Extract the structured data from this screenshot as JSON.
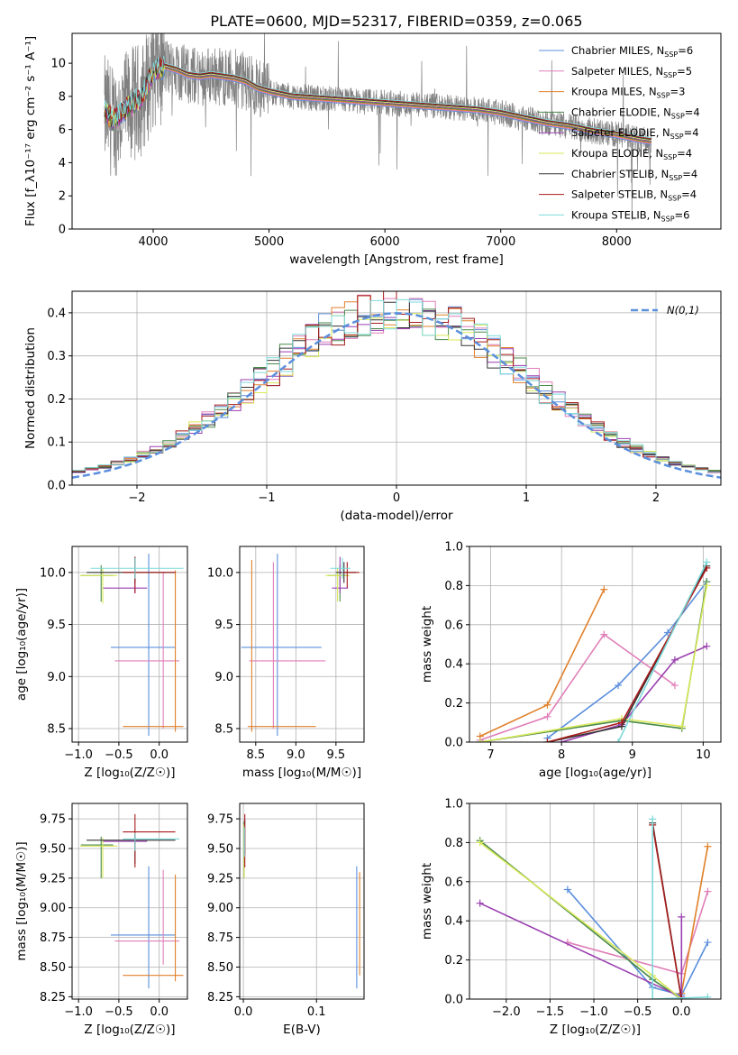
{
  "figure_title": "PLATE=0600, MJD=52317, FIBERID=0359, z=0.065",
  "colors": {
    "Chabrier MILES": "#5b8fdc",
    "Salpeter MILES": "#e07fb8",
    "Kroupa MILES": "#e0802a",
    "Chabrier ELODIE": "#4a8a4a",
    "Salpeter ELODIE": "#9a3fb0",
    "Kroupa ELODIE": "#d9e85a",
    "Chabrier STELIB": "#333333",
    "Salpeter STELIB": "#a81c1c",
    "Kroupa STELIB": "#7ed9d9",
    "data": "#808080",
    "normal": "#5b8fdc"
  },
  "chart_data": [
    {
      "id": "spectrum",
      "type": "line",
      "title": "PLATE=0600, MJD=52317, FIBERID=0359, z=0.065",
      "xlabel": "wavelength [Angstrom, rest frame]",
      "ylabel": "Flux [f_λ10⁻¹⁷ erg cm⁻² s⁻¹ A⁻¹]",
      "xlim": [
        3300,
        8900
      ],
      "ylim": [
        0,
        11.8
      ],
      "xticks": [
        4000,
        5000,
        6000,
        7000,
        8000
      ],
      "yticks": [
        0,
        2,
        4,
        6,
        8,
        10
      ],
      "grid": false,
      "legend_position": "upper-right",
      "legend": [
        {
          "name": "Chabrier MILES",
          "nssp": "6"
        },
        {
          "name": "Salpeter MILES",
          "nssp": "5"
        },
        {
          "name": "Kroupa MILES",
          "nssp": "3"
        },
        {
          "name": "Chabrier ELODIE",
          "nssp": "4"
        },
        {
          "name": "Salpeter ELODIE",
          "nssp": "4"
        },
        {
          "name": "Kroupa ELODIE",
          "nssp": "4"
        },
        {
          "name": "Chabrier STELIB",
          "nssp": "4"
        },
        {
          "name": "Salpeter STELIB",
          "nssp": "4"
        },
        {
          "name": "Kroupa STELIB",
          "nssp": "6"
        }
      ],
      "model_continuum": {
        "x": [
          3600,
          3650,
          3700,
          3800,
          3900,
          4000,
          4100,
          4200,
          4300,
          4400,
          4500,
          4600,
          4700,
          4800,
          4900,
          5000,
          5200,
          5400,
          5600,
          5800,
          6000,
          6200,
          6400,
          6600,
          6800,
          7000,
          7200,
          7400,
          7600,
          7800,
          8000,
          8200,
          8400
        ],
        "y": [
          7.0,
          6.5,
          6.8,
          7.5,
          7.8,
          9.5,
          9.8,
          9.6,
          9.3,
          9.2,
          9.3,
          9.2,
          9.1,
          8.9,
          8.5,
          8.3,
          8.0,
          7.9,
          7.8,
          7.7,
          7.6,
          7.5,
          7.4,
          7.3,
          7.2,
          7.0,
          6.7,
          6.4,
          6.2,
          5.9,
          5.7,
          5.4,
          5.2
        ]
      }
    },
    {
      "id": "residuals",
      "type": "histogram",
      "xlabel": "(data-model)/error",
      "ylabel": "Normed distribution",
      "xlim": [
        -2.5,
        2.5
      ],
      "ylim": [
        0,
        0.45
      ],
      "xticks": [
        -2,
        -1,
        0,
        1,
        2
      ],
      "yticks": [
        0.0,
        0.1,
        0.2,
        0.3,
        0.4
      ],
      "grid": true,
      "legend": "N(0,1)",
      "legend_position": "upper-right",
      "bin_width": 0.1
    },
    {
      "id": "age_vs_Z",
      "type": "errorbar",
      "xlabel": "Z [log₁₀(Z/Z☉)]",
      "ylabel": "age  [log₁₀(age/yr)]",
      "xlim": [
        -1.08,
        0.35
      ],
      "ylim": [
        8.37,
        10.25
      ],
      "xticks": [
        -1.0,
        -0.5,
        0.0
      ],
      "yticks": [
        8.5,
        9.0,
        9.5,
        10.0
      ],
      "grid": true,
      "points": [
        {
          "model": "Chabrier MILES",
          "x": -0.13,
          "y": 9.28,
          "xerr": [
            0.47,
            0.33
          ],
          "yerr": [
            0.85,
            0.9
          ]
        },
        {
          "model": "Salpeter MILES",
          "x": 0.05,
          "y": 9.15,
          "xerr": [
            0.6,
            0.2
          ],
          "yerr": [
            0.65,
            0.85
          ]
        },
        {
          "model": "Kroupa MILES",
          "x": 0.2,
          "y": 8.52,
          "xerr": [
            0.65,
            0.1
          ],
          "yerr": [
            0.05,
            1.5
          ]
        },
        {
          "model": "Chabrier ELODIE",
          "x": -0.72,
          "y": 9.97,
          "xerr": [
            0.25,
            0.15
          ],
          "yerr": [
            0.25,
            0.1
          ]
        },
        {
          "model": "Salpeter ELODIE",
          "x": -0.3,
          "y": 9.85,
          "xerr": [
            0.4,
            0.15
          ],
          "yerr": [
            0.05,
            0.3
          ]
        },
        {
          "model": "Kroupa ELODIE",
          "x": -0.7,
          "y": 9.97,
          "xerr": [
            0.28,
            0.18
          ],
          "yerr": [
            0.27,
            0.07
          ]
        },
        {
          "model": "Chabrier STELIB",
          "x": -0.3,
          "y": 10.0,
          "xerr": [
            0.6,
            0.5
          ],
          "yerr": [
            0.1,
            0.15
          ]
        },
        {
          "model": "Salpeter STELIB",
          "x": -0.3,
          "y": 10.0,
          "xerr": [
            0.15,
            0.5
          ],
          "yerr": [
            0.2,
            0.15
          ]
        },
        {
          "model": "Kroupa STELIB",
          "x": -0.3,
          "y": 10.04,
          "xerr": [
            0.55,
            0.6
          ],
          "yerr": [
            0.1,
            0.1
          ]
        }
      ]
    },
    {
      "id": "age_vs_mass",
      "type": "errorbar",
      "xlabel": "mass [log₁₀(M/M☉)]",
      "xlim": [
        8.3,
        9.85
      ],
      "ylim": [
        8.37,
        10.25
      ],
      "xticks": [
        8.5,
        9.0,
        9.5
      ],
      "yticks": [
        8.5,
        9.0,
        9.5,
        10.0
      ],
      "grid": true,
      "points": [
        {
          "model": "Chabrier MILES",
          "x": 8.77,
          "y": 9.28,
          "xerr": [
            0.45,
            0.55
          ],
          "yerr": [
            0.85,
            0.9
          ]
        },
        {
          "model": "Salpeter MILES",
          "x": 8.72,
          "y": 9.15,
          "xerr": [
            0.3,
            0.65
          ],
          "yerr": [
            0.65,
            0.95
          ]
        },
        {
          "model": "Kroupa MILES",
          "x": 8.45,
          "y": 8.52,
          "xerr": [
            0.05,
            0.8
          ],
          "yerr": [
            0.05,
            1.6
          ]
        },
        {
          "model": "Chabrier ELODIE",
          "x": 9.55,
          "y": 9.97,
          "xerr": [
            0.15,
            0.1
          ],
          "yerr": [
            0.25,
            0.1
          ]
        },
        {
          "model": "Salpeter ELODIE",
          "x": 9.55,
          "y": 9.85,
          "xerr": [
            0.1,
            0.1
          ],
          "yerr": [
            0.05,
            0.3
          ]
        },
        {
          "model": "Kroupa ELODIE",
          "x": 9.52,
          "y": 9.97,
          "xerr": [
            0.15,
            0.15
          ],
          "yerr": [
            0.25,
            0.07
          ]
        },
        {
          "model": "Chabrier STELIB",
          "x": 9.6,
          "y": 10.0,
          "xerr": [
            0.1,
            0.15
          ],
          "yerr": [
            0.1,
            0.1
          ]
        },
        {
          "model": "Salpeter STELIB",
          "x": 9.64,
          "y": 10.0,
          "xerr": [
            0.08,
            0.15
          ],
          "yerr": [
            0.15,
            0.1
          ]
        },
        {
          "model": "Kroupa STELIB",
          "x": 9.58,
          "y": 10.04,
          "xerr": [
            0.15,
            0.1
          ],
          "yerr": [
            0.1,
            0.1
          ]
        }
      ]
    },
    {
      "id": "weight_vs_age",
      "type": "line",
      "xlabel": "age  [log₁₀(age/yr)]",
      "ylabel": "mass weight",
      "xlim": [
        6.7,
        10.25
      ],
      "ylim": [
        0,
        1.0
      ],
      "xticks": [
        7,
        8,
        9,
        10
      ],
      "yticks": [
        0.0,
        0.2,
        0.4,
        0.6,
        0.8,
        1.0
      ],
      "grid": true,
      "series": [
        {
          "name": "Chabrier MILES",
          "x": [
            7.8,
            8.8,
            9.5,
            10.05
          ],
          "y": [
            0.02,
            0.29,
            0.56,
            0.82
          ]
        },
        {
          "name": "Salpeter MILES",
          "x": [
            6.85,
            7.8,
            8.6,
            9.6
          ],
          "y": [
            0.01,
            0.13,
            0.55,
            0.29
          ]
        },
        {
          "name": "Kroupa MILES",
          "x": [
            6.85,
            7.8,
            8.6
          ],
          "y": [
            0.03,
            0.19,
            0.78
          ]
        },
        {
          "name": "Chabrier ELODIE",
          "x": [
            6.85,
            8.85,
            9.7,
            10.05
          ],
          "y": [
            0.0,
            0.11,
            0.07,
            0.82
          ]
        },
        {
          "name": "Salpeter ELODIE",
          "x": [
            8.0,
            8.85,
            9.6,
            10.05
          ],
          "y": [
            0.0,
            0.09,
            0.42,
            0.49
          ]
        },
        {
          "name": "Kroupa ELODIE",
          "x": [
            6.85,
            8.85,
            9.7,
            10.05
          ],
          "y": [
            0.0,
            0.12,
            0.08,
            0.8
          ]
        },
        {
          "name": "Chabrier STELIB",
          "x": [
            7.8,
            8.85,
            10.05
          ],
          "y": [
            0.0,
            0.08,
            0.9
          ]
        },
        {
          "name": "Salpeter STELIB",
          "x": [
            7.8,
            8.85,
            10.05
          ],
          "y": [
            0.0,
            0.1,
            0.89
          ]
        },
        {
          "name": "Kroupa STELIB",
          "x": [
            8.8,
            10.05
          ],
          "y": [
            0.0,
            0.92
          ]
        }
      ]
    },
    {
      "id": "mass_vs_Z",
      "type": "errorbar",
      "xlabel": "Z [log₁₀(Z/Z☉)]",
      "ylabel": "mass [log₁₀(M/M☉)]",
      "xlim": [
        -1.08,
        0.35
      ],
      "ylim": [
        8.23,
        9.88
      ],
      "xticks": [
        -1.0,
        -0.5,
        0.0
      ],
      "yticks": [
        8.25,
        8.5,
        8.75,
        9.0,
        9.25,
        9.5,
        9.75
      ],
      "grid": true,
      "points": [
        {
          "model": "Chabrier MILES",
          "x": -0.13,
          "y": 8.77,
          "xerr": [
            0.47,
            0.33
          ],
          "yerr": [
            0.45,
            0.58
          ]
        },
        {
          "model": "Salpeter MILES",
          "x": 0.05,
          "y": 8.72,
          "xerr": [
            0.6,
            0.2
          ],
          "yerr": [
            0.2,
            0.6
          ]
        },
        {
          "model": "Kroupa MILES",
          "x": 0.2,
          "y": 8.43,
          "xerr": [
            0.65,
            0.1
          ],
          "yerr": [
            0.05,
            0.85
          ]
        },
        {
          "model": "Chabrier ELODIE",
          "x": -0.72,
          "y": 9.53,
          "xerr": [
            0.25,
            0.15
          ],
          "yerr": [
            0.28,
            0.07
          ]
        },
        {
          "model": "Salpeter ELODIE",
          "x": -0.3,
          "y": 9.56,
          "xerr": [
            0.4,
            0.15
          ],
          "yerr": [
            0.05,
            0.05
          ]
        },
        {
          "model": "Kroupa ELODIE",
          "x": -0.7,
          "y": 9.52,
          "xerr": [
            0.28,
            0.18
          ],
          "yerr": [
            0.27,
            0.07
          ]
        },
        {
          "model": "Chabrier STELIB",
          "x": -0.3,
          "y": 9.57,
          "xerr": [
            0.6,
            0.5
          ],
          "yerr": [
            0.2,
            0.05
          ]
        },
        {
          "model": "Salpeter STELIB",
          "x": -0.3,
          "y": 9.64,
          "xerr": [
            0.15,
            0.5
          ],
          "yerr": [
            0.3,
            0.15
          ]
        },
        {
          "model": "Kroupa STELIB",
          "x": -0.3,
          "y": 9.58,
          "xerr": [
            0.15,
            0.55
          ],
          "yerr": [
            0.1,
            0.05
          ]
        }
      ]
    },
    {
      "id": "mass_vs_ebv",
      "type": "errorbar",
      "xlabel": "E(B-V)",
      "xlim": [
        -0.005,
        0.165
      ],
      "ylim": [
        8.23,
        9.88
      ],
      "xticks": [
        0.0,
        0.1
      ],
      "yticks": [
        8.25,
        8.5,
        8.75,
        9.0,
        9.25,
        9.5,
        9.75
      ],
      "grid": true,
      "points": [
        {
          "model": "Chabrier MILES",
          "x": 0.155,
          "y": 8.77,
          "xerr": [
            0,
            0
          ],
          "yerr": [
            0.45,
            0.58
          ]
        },
        {
          "model": "Kroupa MILES",
          "x": 0.159,
          "y": 8.85,
          "xerr": [
            0,
            0
          ],
          "yerr": [
            0.42,
            0.45
          ]
        },
        {
          "model": "Salpeter ELODIE",
          "x": 0.002,
          "y": 9.55,
          "xerr": [
            0,
            0
          ],
          "yerr": [
            0.1,
            0.2
          ]
        },
        {
          "model": "Chabrier ELODIE",
          "x": 0.001,
          "y": 9.53,
          "xerr": [
            0,
            0
          ],
          "yerr": [
            0.28,
            0.2
          ]
        },
        {
          "model": "Kroupa ELODIE",
          "x": 0.001,
          "y": 9.55,
          "xerr": [
            0,
            0
          ],
          "yerr": [
            0.3,
            0.15
          ]
        },
        {
          "model": "Salpeter STELIB",
          "x": 0.002,
          "y": 9.64,
          "xerr": [
            0,
            0
          ],
          "yerr": [
            0.3,
            0.15
          ]
        },
        {
          "model": "Kroupa STELIB",
          "x": 0.0015,
          "y": 9.58,
          "xerr": [
            0,
            0
          ],
          "yerr": [
            0.15,
            0.1
          ]
        }
      ]
    },
    {
      "id": "weight_vs_Z",
      "type": "line",
      "xlabel": "Z [log₁₀(Z/Z☉)]",
      "ylabel": "mass weight",
      "xlim": [
        -2.42,
        0.45
      ],
      "ylim": [
        0,
        1.0
      ],
      "xticks": [
        -2.0,
        -1.5,
        -1.0,
        -0.5,
        0.0
      ],
      "yticks": [
        0.0,
        0.2,
        0.4,
        0.6,
        0.8,
        1.0
      ],
      "grid": true,
      "series": [
        {
          "name": "Chabrier MILES",
          "x": [
            -1.3,
            -0.33,
            0.0,
            0.3
          ],
          "y": [
            0.56,
            0.06,
            0.02,
            0.29
          ]
        },
        {
          "name": "Salpeter MILES",
          "x": [
            -1.3,
            0.0,
            0.3
          ],
          "y": [
            0.29,
            0.13,
            0.55
          ]
        },
        {
          "name": "Kroupa MILES",
          "x": [
            0.0,
            0.3
          ],
          "y": [
            0.03,
            0.78
          ]
        },
        {
          "name": "Chabrier ELODIE",
          "x": [
            -2.3,
            -0.33,
            0.0
          ],
          "y": [
            0.81,
            0.1,
            0.0
          ]
        },
        {
          "name": "Salpeter ELODIE",
          "x": [
            -2.3,
            0.0,
            0.0
          ],
          "y": [
            0.49,
            0.01,
            0.42
          ]
        },
        {
          "name": "Kroupa ELODIE",
          "x": [
            -2.3,
            -0.33,
            0.0
          ],
          "y": [
            0.8,
            0.12,
            0.0
          ]
        },
        {
          "name": "Chabrier STELIB",
          "x": [
            -0.33,
            0.0
          ],
          "y": [
            0.9,
            0.0
          ]
        },
        {
          "name": "Salpeter STELIB",
          "x": [
            -0.33,
            0.0
          ],
          "y": [
            0.89,
            0.0
          ]
        },
        {
          "name": "Kroupa STELIB",
          "x": [
            -0.33,
            -0.33,
            0.3
          ],
          "y": [
            0.92,
            0.0,
            0.01
          ]
        }
      ]
    }
  ]
}
